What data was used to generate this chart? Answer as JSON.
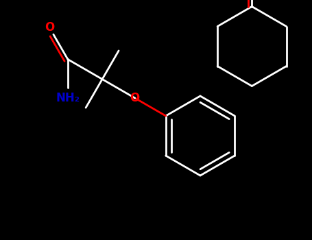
{
  "background": "#000000",
  "bond_color": "#ffffff",
  "oxygen_color": "#ff0000",
  "nitrogen_color": "#0000cd",
  "lw": 2.0,
  "figsize": [
    4.55,
    3.5
  ],
  "dpi": 100,
  "xlim": [
    0,
    4.55
  ],
  "ylim": [
    0,
    3.5
  ]
}
